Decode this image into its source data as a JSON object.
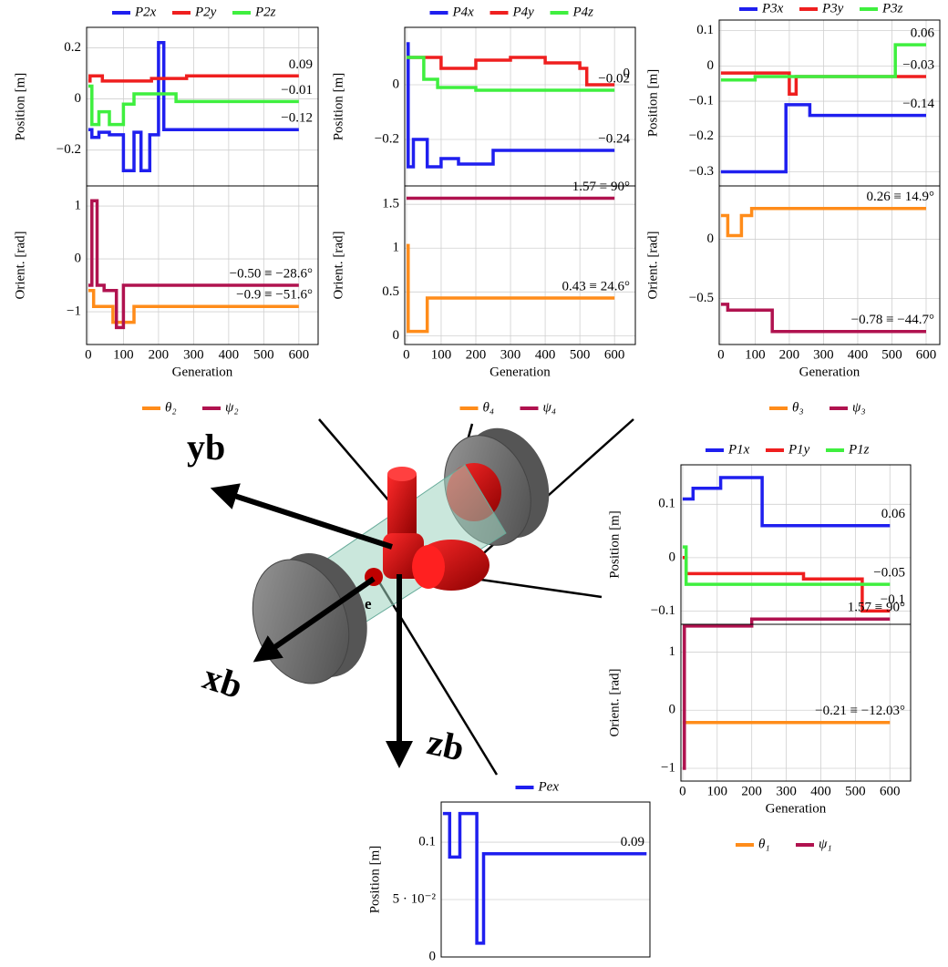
{
  "chart_data": [
    {
      "type": "line",
      "xlabel": "Generation",
      "xlim": [
        -5,
        655
      ],
      "xticks": [
        0,
        100,
        200,
        300,
        400,
        500,
        600
      ],
      "position": {
        "ylabel": "Position [m]",
        "ylim": [
          -0.34,
          0.28
        ],
        "yticks": [
          {
            "value": -0.2,
            "label": "−0.2"
          },
          0,
          0.2
        ],
        "series": [
          {
            "name": "P2x",
            "color": "#1f1fef",
            "x": [
              0,
              10,
              10,
              30,
              30,
              60,
              60,
              100,
              100,
              130,
              130,
              150,
              150,
              175,
              175,
              200,
              200,
              215,
              215,
              600
            ],
            "values": [
              -0.12,
              -0.12,
              -0.15,
              -0.15,
              -0.13,
              -0.13,
              -0.14,
              -0.14,
              -0.28,
              -0.28,
              -0.13,
              -0.13,
              -0.28,
              -0.28,
              -0.14,
              -0.14,
              0.22,
              0.22,
              -0.12,
              -0.12
            ]
          },
          {
            "name": "P2y",
            "color": "#ef1f1f",
            "x": [
              0,
              5,
              5,
              40,
              40,
              180,
              180,
              280,
              280,
              600
            ],
            "values": [
              0.07,
              0.07,
              0.09,
              0.09,
              0.07,
              0.07,
              0.08,
              0.08,
              0.09,
              0.09
            ]
          },
          {
            "name": "P2z",
            "color": "#3fef3f",
            "x": [
              0,
              10,
              10,
              30,
              30,
              60,
              60,
              100,
              100,
              130,
              130,
              250,
              250,
              600
            ],
            "values": [
              0.05,
              0.05,
              -0.1,
              -0.1,
              -0.05,
              -0.05,
              -0.1,
              -0.1,
              -0.02,
              -0.02,
              0.02,
              0.02,
              -0.01,
              -0.01
            ]
          }
        ],
        "annotations": [
          "−0.12",
          "0.09",
          "−0.01"
        ]
      },
      "orientation": {
        "ylabel": "Orient. [rad]",
        "ylim": [
          -1.62,
          1.38
        ],
        "yticks": [
          {
            "value": -1,
            "label": "−1"
          },
          0,
          1
        ],
        "series": [
          {
            "name": "θ₂",
            "color": "#ff8c1a",
            "x": [
              0,
              15,
              15,
              70,
              70,
              130,
              130,
              600
            ],
            "values": [
              -0.6,
              -0.6,
              -0.9,
              -0.9,
              -1.2,
              -1.2,
              -0.9,
              -0.9
            ]
          },
          {
            "name": "ψ₂",
            "color": "#b0124f",
            "x": [
              0,
              10,
              10,
              25,
              25,
              45,
              45,
              80,
              80,
              100,
              100,
              600
            ],
            "values": [
              -0.5,
              -0.5,
              1.1,
              1.1,
              -0.5,
              -0.5,
              -0.6,
              -0.6,
              -1.3,
              -1.3,
              -0.5,
              -0.5
            ]
          }
        ],
        "annotations": [
          "−0.9 ≡ −51.6°",
          "−0.50 ≡ −28.6°"
        ]
      }
    },
    {
      "type": "line",
      "xlabel": "Generation",
      "xlim": [
        -5,
        660
      ],
      "xticks": [
        0,
        100,
        200,
        300,
        400,
        500,
        600
      ],
      "position": {
        "ylabel": "Position [m]",
        "ylim": [
          -0.37,
          0.21
        ],
        "yticks": [
          {
            "value": -0.2,
            "label": "−0.2"
          },
          0
        ],
        "series": [
          {
            "name": "P4x",
            "color": "#1f1fef",
            "x": [
              0,
              5,
              5,
              20,
              20,
              60,
              60,
              100,
              100,
              150,
              150,
              250,
              250,
              600
            ],
            "values": [
              0.15,
              0.15,
              -0.3,
              -0.3,
              -0.2,
              -0.2,
              -0.3,
              -0.3,
              -0.27,
              -0.27,
              -0.29,
              -0.29,
              -0.24,
              -0.24
            ]
          },
          {
            "name": "P4y",
            "color": "#ef1f1f",
            "x": [
              0,
              100,
              100,
              200,
              200,
              300,
              300,
              400,
              400,
              500,
              500,
              520,
              520,
              600
            ],
            "values": [
              0.1,
              0.1,
              0.06,
              0.06,
              0.09,
              0.09,
              0.1,
              0.1,
              0.08,
              0.08,
              0.06,
              0.06,
              0,
              0
            ]
          },
          {
            "name": "P4z",
            "color": "#3fef3f",
            "x": [
              0,
              50,
              50,
              90,
              90,
              200,
              200,
              600
            ],
            "values": [
              0.1,
              0.1,
              0.02,
              0.02,
              -0.01,
              -0.01,
              -0.02,
              -0.02
            ]
          }
        ],
        "annotations": [
          "−0.24",
          "0",
          "−0.02"
        ]
      },
      "orientation": {
        "ylabel": "Orient. [rad]",
        "ylim": [
          -0.1,
          1.71
        ],
        "yticks": [
          0,
          0.5,
          1,
          1.5
        ],
        "series": [
          {
            "name": "θ₄",
            "color": "#ff8c1a",
            "x": [
              0,
              5,
              5,
              60,
              60,
              600
            ],
            "values": [
              1.03,
              1.03,
              0.05,
              0.05,
              0.43,
              0.43
            ]
          },
          {
            "name": "ψ₄",
            "color": "#b0124f",
            "x": [
              0,
              600
            ],
            "values": [
              1.57,
              1.57
            ]
          }
        ],
        "annotations": [
          "0.43 ≡ 24.6°",
          "1.57 ≡ 90°"
        ]
      }
    },
    {
      "type": "line",
      "xlabel": "Generation",
      "xlim": [
        -5,
        640
      ],
      "xticks": [
        0,
        100,
        200,
        300,
        400,
        500,
        600
      ],
      "position": {
        "ylabel": "Position [m]",
        "ylim": [
          -0.34,
          0.13
        ],
        "yticks": [
          {
            "value": -0.3,
            "label": "−0.3"
          },
          {
            "value": -0.2,
            "label": "−0.2"
          },
          {
            "value": -0.1,
            "label": "−0.1"
          },
          0,
          0.1
        ],
        "series": [
          {
            "name": "P3x",
            "color": "#1f1fef",
            "x": [
              0,
              190,
              190,
              260,
              260,
              600
            ],
            "values": [
              -0.3,
              -0.3,
              -0.11,
              -0.11,
              -0.14,
              -0.14
            ]
          },
          {
            "name": "P3y",
            "color": "#ef1f1f",
            "x": [
              0,
              200,
              200,
              220,
              220,
              600
            ],
            "values": [
              -0.02,
              -0.02,
              -0.08,
              -0.08,
              -0.03,
              -0.03
            ]
          },
          {
            "name": "P3z",
            "color": "#3fef3f",
            "x": [
              0,
              100,
              100,
              510,
              510,
              600
            ],
            "values": [
              -0.04,
              -0.04,
              -0.03,
              -0.03,
              0.06,
              0.06
            ]
          }
        ],
        "annotations": [
          "−0.14",
          "−0.03",
          "0.06"
        ]
      },
      "orientation": {
        "ylabel": "Orient. [rad]",
        "ylim": [
          -0.89,
          0.45
        ],
        "yticks": [
          {
            "value": -0.5,
            "label": "−0.5"
          },
          0
        ],
        "series": [
          {
            "name": "θ₃",
            "color": "#ff8c1a",
            "x": [
              0,
              20,
              20,
              60,
              60,
              90,
              90,
              600
            ],
            "values": [
              0.2,
              0.2,
              0.03,
              0.03,
              0.2,
              0.2,
              0.26,
              0.26
            ]
          },
          {
            "name": "ψ₃",
            "color": "#b0124f",
            "x": [
              0,
              20,
              20,
              150,
              150,
              600
            ],
            "values": [
              -0.55,
              -0.55,
              -0.6,
              -0.6,
              -0.78,
              -0.78
            ]
          }
        ],
        "annotations": [
          "0.26 ≡ 14.9°",
          "−0.78 ≡ −44.7°"
        ]
      }
    },
    {
      "type": "line",
      "xlabel": "Generation",
      "xlim": [
        -5,
        660
      ],
      "xticks": [
        0,
        100,
        200,
        300,
        400,
        500,
        600
      ],
      "position": {
        "ylabel": "Position [m]",
        "ylim": [
          -0.125,
          0.174
        ],
        "yticks": [
          {
            "value": -0.1,
            "label": "−0.1"
          },
          0,
          0.1
        ],
        "series": [
          {
            "name": "P1x",
            "color": "#1f1fef",
            "x": [
              0,
              30,
              30,
              110,
              110,
              230,
              230,
              600
            ],
            "values": [
              0.11,
              0.11,
              0.13,
              0.13,
              0.15,
              0.15,
              0.06,
              0.06
            ]
          },
          {
            "name": "P1y",
            "color": "#ef1f1f",
            "x": [
              0,
              10,
              10,
              350,
              350,
              520,
              520,
              600
            ],
            "values": [
              0,
              0,
              -0.03,
              -0.03,
              -0.04,
              -0.04,
              -0.1,
              -0.1
            ]
          },
          {
            "name": "P1z",
            "color": "#3fef3f",
            "x": [
              0,
              10,
              10,
              600
            ],
            "values": [
              0.02,
              0.02,
              -0.05,
              -0.05
            ]
          }
        ],
        "annotations": [
          "0.06",
          "−0.1",
          "−0.05"
        ]
      },
      "orientation": {
        "ylabel": "Orient. [rad]",
        "ylim": [
          -1.22,
          1.48
        ],
        "yticks": [
          {
            "value": -1,
            "label": "−1"
          },
          0,
          1
        ],
        "series": [
          {
            "name": "θ₁",
            "color": "#ff8c1a",
            "x": [
              0,
              600
            ],
            "values": [
              -0.21,
              -0.21
            ]
          },
          {
            "name": "ψ₁",
            "color": "#b0124f",
            "x": [
              0,
              5,
              5,
              200,
              200,
              600
            ],
            "values": [
              -1,
              -1,
              1.45,
              1.45,
              1.57,
              1.57
            ]
          }
        ],
        "annotations": [
          "−0.21 ≡ −12.03°",
          "1.57 ≡ 90°"
        ]
      }
    },
    {
      "type": "line",
      "xlim": [
        -5,
        610
      ],
      "position": {
        "ylabel": "Position [m]",
        "ylim": [
          0,
          0.135
        ],
        "yticks": [
          0,
          {
            "value": 0.05,
            "label": "5 · 10⁻²"
          },
          0.1
        ],
        "series": [
          {
            "name": "Pex",
            "color": "#1f1fef",
            "x": [
              0,
              20,
              20,
              50,
              50,
              100,
              100,
              120,
              120,
              600
            ],
            "values": [
              0.125,
              0.125,
              0.087,
              0.087,
              0.125,
              0.125,
              0.012,
              0.012,
              0.09,
              0.09
            ]
          }
        ],
        "annotations": [
          "0.09"
        ]
      }
    }
  ],
  "diagram": {
    "labels": [
      "yb",
      "xb",
      "zb",
      "e"
    ]
  }
}
